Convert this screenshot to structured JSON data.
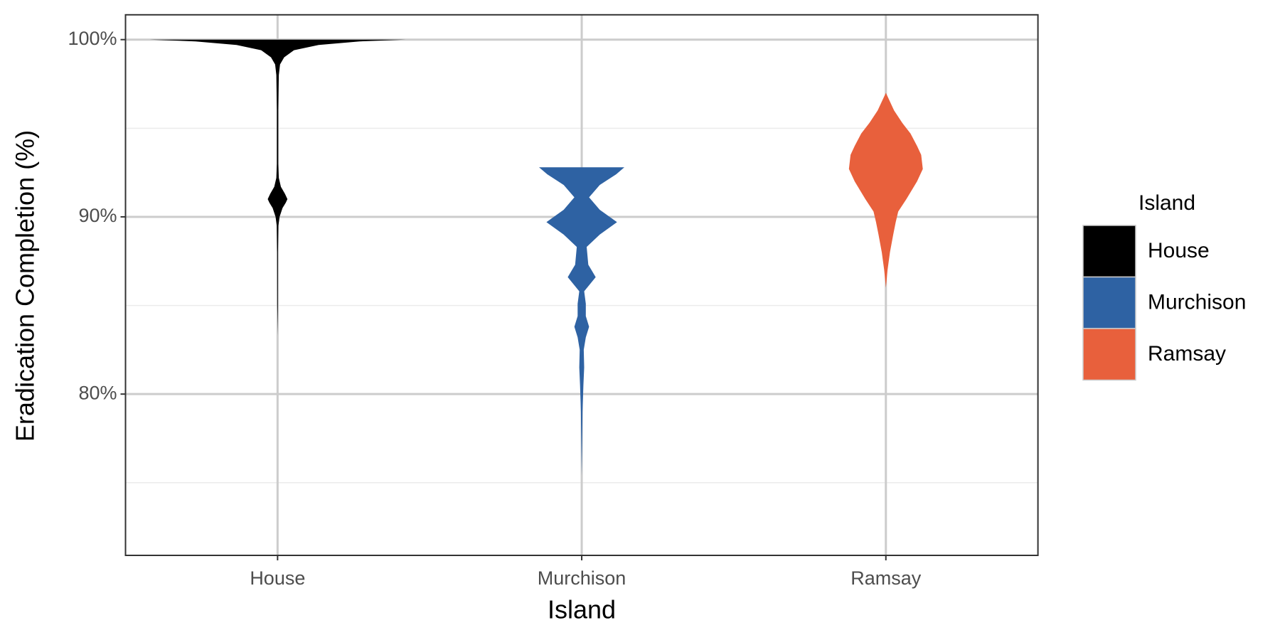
{
  "chart_data": {
    "type": "violin",
    "x_label": "Island",
    "y_label": "Eradication Completion (%)",
    "categories": [
      "House",
      "Murchison",
      "Ramsay"
    ],
    "legend_title": "Island",
    "legend_position": "right",
    "ylim": [
      70.9,
      101.4
    ],
    "yticks": [
      {
        "value": 80,
        "label": "80%"
      },
      {
        "value": 90,
        "label": "90%"
      },
      {
        "value": 100,
        "label": "100%"
      }
    ],
    "y_minor_grid": [
      75,
      85,
      95
    ],
    "grid": true,
    "series": [
      {
        "name": "House",
        "color": "#000000",
        "y": [
          83.3,
          85,
          88,
          89.5,
          90,
          90.5,
          90.8,
          91,
          91.3,
          91.7,
          92.2,
          93,
          96,
          98,
          98.6,
          99,
          99.4,
          99.7,
          99.9,
          100
        ],
        "density": [
          0,
          0.4,
          0.5,
          1,
          2.5,
          6,
          10,
          12,
          9,
          4,
          1.5,
          0.8,
          0.8,
          1.5,
          3,
          8,
          20,
          50,
          100,
          156
        ]
      },
      {
        "name": "Murchison",
        "color": "#2e62a3",
        "y": [
          75.4,
          77,
          79,
          80.5,
          81.5,
          82.5,
          83.2,
          83.8,
          84.4,
          85.1,
          85.8,
          86.6,
          87.3,
          88.3,
          89,
          89.7,
          90.4,
          91.1,
          91.8,
          92.4,
          92.8
        ],
        "density": [
          0,
          0.5,
          1,
          2,
          3,
          2.5,
          5,
          9,
          5,
          5,
          3,
          17,
          8,
          6,
          22,
          43,
          22,
          9,
          22,
          42,
          52
        ]
      },
      {
        "name": "Ramsay",
        "color": "#e8603c",
        "y": [
          86,
          87,
          88,
          89,
          89.7,
          90.3,
          91,
          92,
          92.7,
          93.5,
          94,
          94.7,
          95.3,
          96,
          96.5,
          97
        ],
        "density": [
          0,
          2,
          5,
          9,
          12,
          15,
          25,
          38,
          45,
          43,
          38,
          30,
          20,
          10,
          5,
          0
        ]
      }
    ]
  }
}
